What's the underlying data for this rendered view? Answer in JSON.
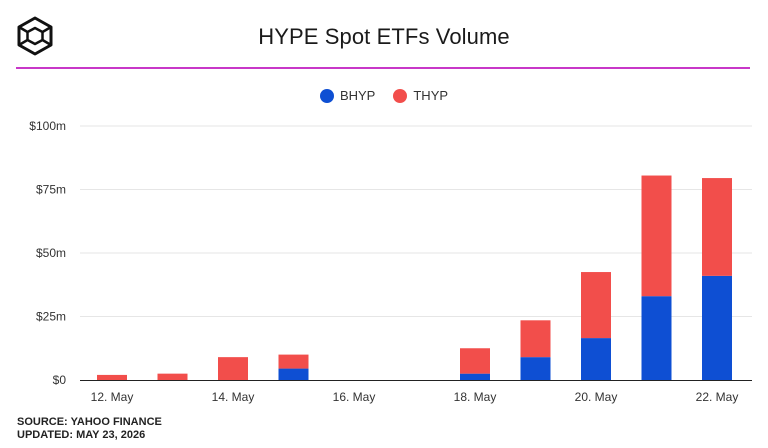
{
  "title": "HYPE Spot ETFs Volume",
  "legend": [
    {
      "name": "BHYP",
      "color": "#0e4fd3"
    },
    {
      "name": "THYP",
      "color": "#f24e4b"
    }
  ],
  "footer": {
    "source": "SOURCE: YAHOO FINANCE",
    "updated": "UPDATED: MAY 23, 2026"
  },
  "colors": {
    "accent_rule": "#c837c8",
    "grid": "#e6e6e6"
  },
  "chart_data": {
    "type": "bar",
    "stacked": true,
    "title": "HYPE Spot ETFs Volume",
    "categories": [
      "12. May",
      "13. May",
      "14. May",
      "15. May",
      "16. May",
      "17. May",
      "18. May",
      "19. May",
      "20. May",
      "21. May",
      "22. May"
    ],
    "x_tick_labels": [
      "12. May",
      "14. May",
      "16. May",
      "18. May",
      "20. May",
      "22. May"
    ],
    "series": [
      {
        "name": "BHYP",
        "color": "#0e4fd3",
        "values": [
          0,
          0,
          0,
          4.5,
          0,
          0,
          2.5,
          9,
          16.5,
          33,
          41
        ]
      },
      {
        "name": "THYP",
        "color": "#f24e4b",
        "values": [
          2,
          2.5,
          9,
          5.5,
          0,
          0,
          10,
          14.5,
          26,
          47.5,
          38.5
        ]
      }
    ],
    "ylim": [
      0,
      100
    ],
    "yticks": [
      0,
      25,
      50,
      75,
      100
    ],
    "ytick_labels": [
      "$0",
      "$25m",
      "$50m",
      "$75m",
      "$100m"
    ],
    "xlabel": "",
    "ylabel": "",
    "grid": true,
    "legend_position": "top-center"
  }
}
